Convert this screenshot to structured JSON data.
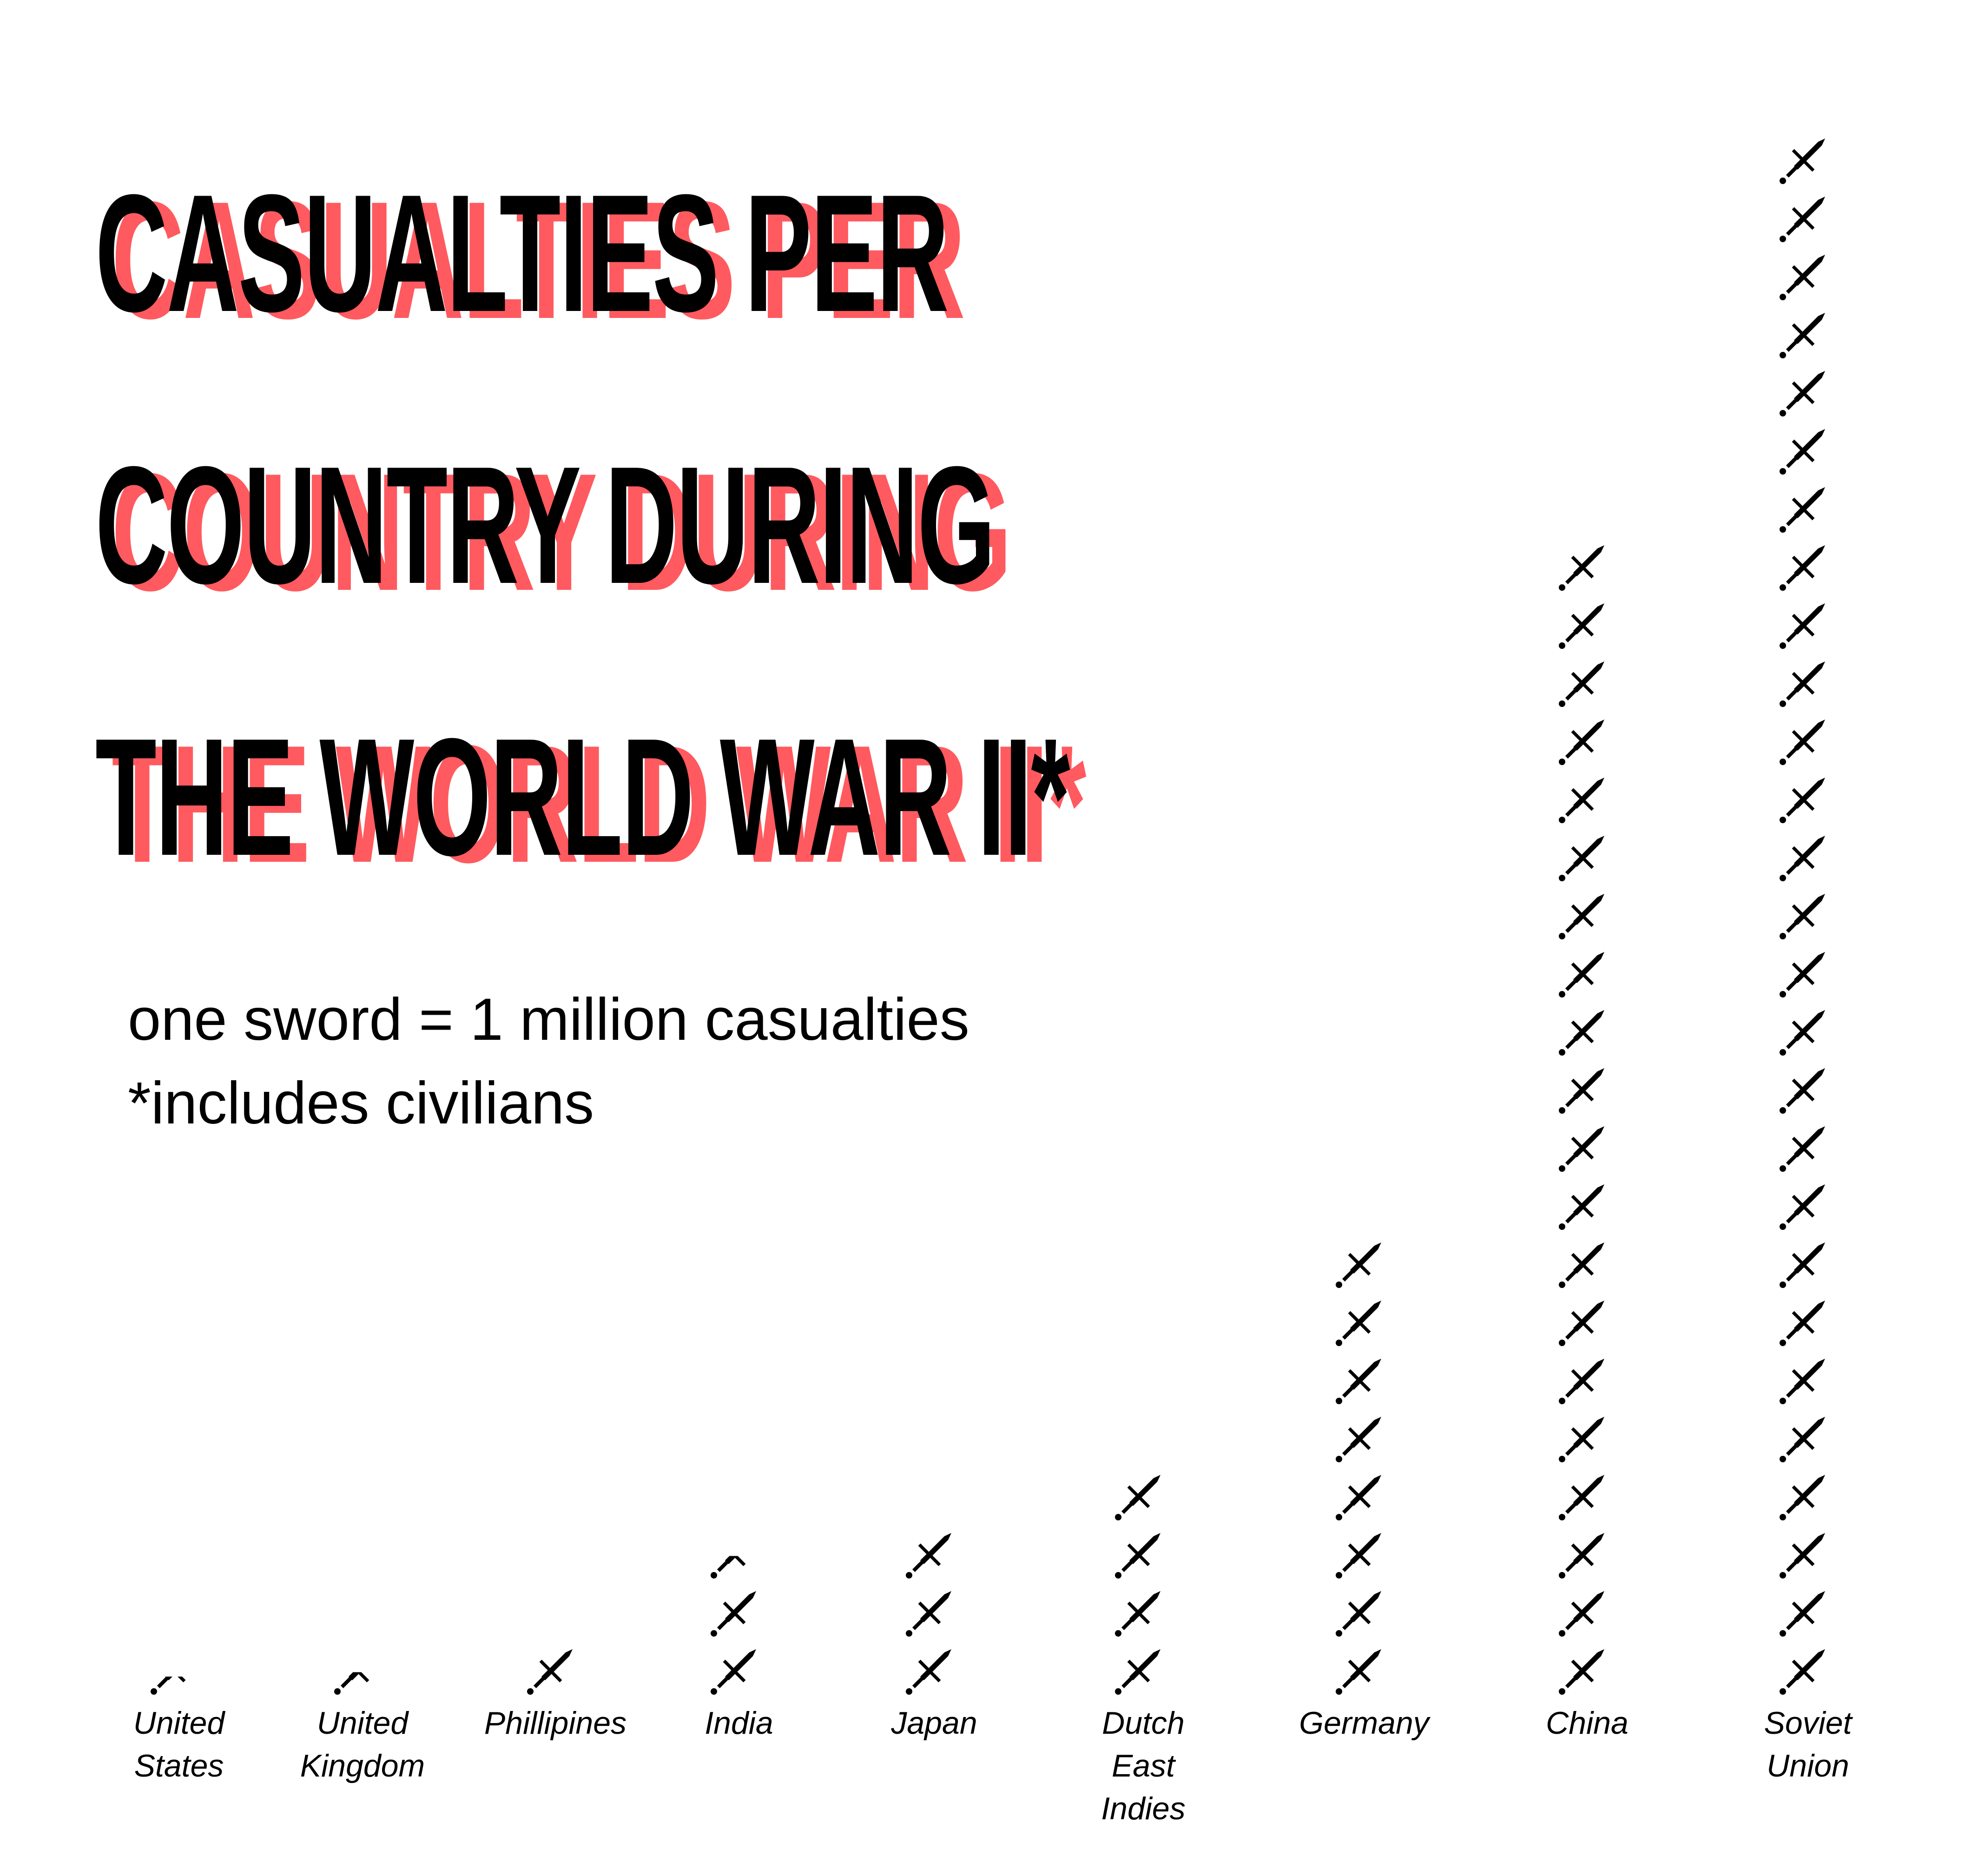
{
  "title": {
    "lines": [
      "Casualties per",
      "country during",
      "the World War II*"
    ],
    "shadow_color": "#ff5a5f",
    "text_color": "#000000"
  },
  "notes": {
    "scale": "one sword = 1 million casualties",
    "footnote": "*includes civilians"
  },
  "chart_data": {
    "type": "pictograph",
    "unit_icon": "sword-icon",
    "unit_value": "1 million casualties",
    "categories": [
      {
        "name": "United States",
        "label_lines": [
          "United",
          "States"
        ],
        "value": 0.4
      },
      {
        "name": "United Kingdom",
        "label_lines": [
          "United",
          "Kingdom"
        ],
        "value": 0.5
      },
      {
        "name": "Phillipines",
        "label_lines": [
          "Phillipines"
        ],
        "value": 1
      },
      {
        "name": "India",
        "label_lines": [
          "India"
        ],
        "value": 2.5
      },
      {
        "name": "Japan",
        "label_lines": [
          "Japan"
        ],
        "value": 3
      },
      {
        "name": "Dutch East Indies",
        "label_lines": [
          "Dutch",
          "East",
          "Indies"
        ],
        "value": 4
      },
      {
        "name": "Germany",
        "label_lines": [
          "Germany"
        ],
        "value": 8
      },
      {
        "name": "China",
        "label_lines": [
          "China"
        ],
        "value": 20
      },
      {
        "name": "Soviet Union",
        "label_lines": [
          "Soviet",
          "Union"
        ],
        "value": 27
      }
    ],
    "icon_color": "#000000"
  }
}
